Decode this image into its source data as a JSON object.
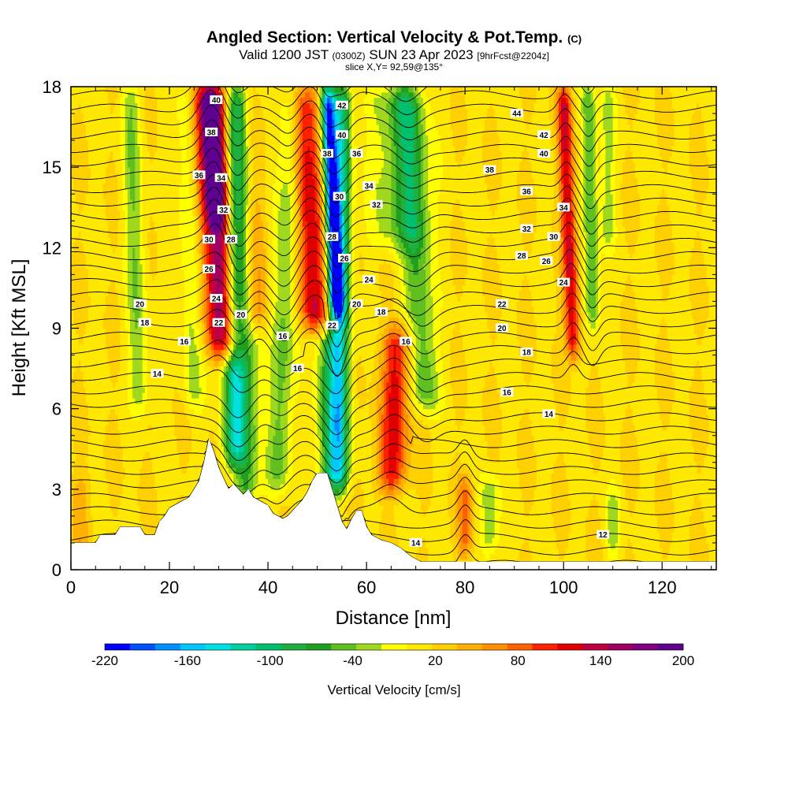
{
  "chart_data": {
    "type": "heatmap",
    "title": "Angled Section: Vertical Velocity & Pot.Temp.",
    "title_tag": "(C)",
    "subtitle_main": "Valid 1200 JST",
    "subtitle_utc": "(0300Z)",
    "subtitle_date": "SUN 23 Apr 2023",
    "subtitle_fcst": "[9hrFcst@2204z]",
    "slice_label": "slice X,Y= 92,59@135°",
    "xlabel": "Distance [nm]",
    "ylabel": "Height [Kft MSL]",
    "xlim": [
      0,
      131
    ],
    "ylim": [
      0,
      18
    ],
    "x_ticks": [
      "0",
      "20",
      "40",
      "60",
      "80",
      "100",
      "120"
    ],
    "x_tick_values": [
      0,
      20,
      40,
      60,
      80,
      100,
      120
    ],
    "y_ticks": [
      "0",
      "3",
      "6",
      "9",
      "12",
      "15",
      "18"
    ],
    "y_tick_values": [
      0,
      3,
      6,
      9,
      12,
      15,
      18
    ],
    "colorbar": {
      "label": "Vertical Velocity [cm/s]",
      "tick_labels": [
        "-220",
        "-160",
        "-100",
        "-40",
        "20",
        "80",
        "140",
        "200"
      ],
      "tick_values": [
        -220,
        -160,
        -100,
        -40,
        20,
        80,
        140,
        200
      ],
      "colors": [
        "#0000ff",
        "#0050ff",
        "#0090ff",
        "#00c8ff",
        "#00e0e0",
        "#00d0a0",
        "#00c070",
        "#20b040",
        "#20a020",
        "#60c020",
        "#a0d820",
        "#ffff00",
        "#ffe800",
        "#ffd000",
        "#ffb000",
        "#ff9000",
        "#ff6000",
        "#ff2000",
        "#e00000",
        "#c00040",
        "#a00060",
        "#800080",
        "#600090"
      ]
    },
    "vertical_velocity_features": [
      {
        "x": 31.5,
        "ybottom": 8.0,
        "ytop": 18,
        "lean": -3.5,
        "width": 3.5,
        "value": 150
      },
      {
        "x": 29.5,
        "ybottom": 13,
        "ytop": 18,
        "lean": -1.5,
        "width": 2.0,
        "value": 90
      },
      {
        "x": 33.0,
        "ybottom": 4.0,
        "ytop": 18,
        "lean": 0.5,
        "width": 2.2,
        "value": -110
      },
      {
        "x": 37.5,
        "ybottom": 9.0,
        "ytop": 18,
        "lean": -1.5,
        "width": 2.5,
        "value": 80
      },
      {
        "x": 35.5,
        "ybottom": 2.5,
        "ytop": 18,
        "lean": 0.5,
        "width": 2.5,
        "value": -80
      },
      {
        "x": 42.0,
        "ybottom": 3.0,
        "ytop": 18,
        "lean": 3.0,
        "width": 2.5,
        "value": -60
      },
      {
        "x": 49.5,
        "ybottom": 9.0,
        "ytop": 18,
        "lean": -2.5,
        "width": 3.0,
        "value": 110
      },
      {
        "x": 54.0,
        "ybottom": 9.5,
        "ytop": 18,
        "lean": -2.0,
        "width": 1.5,
        "value": -210
      },
      {
        "x": 54.5,
        "ybottom": 3.0,
        "ytop": 18,
        "lean": 0.5,
        "width": 2.0,
        "value": -120
      },
      {
        "x": 52.5,
        "ybottom": 3.0,
        "ytop": 9.0,
        "lean": 0.0,
        "width": 2.5,
        "value": -90
      },
      {
        "x": 65.0,
        "ybottom": 3.0,
        "ytop": 9.0,
        "lean": 1.5,
        "width": 3.0,
        "value": 100
      },
      {
        "x": 72.0,
        "ybottom": 6.0,
        "ytop": 18,
        "lean": -4.0,
        "width": 3.0,
        "value": -70
      },
      {
        "x": 67.0,
        "ybottom": 12.0,
        "ytop": 18,
        "lean": -1.0,
        "width": 6.0,
        "value": -50
      },
      {
        "x": 14.0,
        "ybottom": 6.0,
        "ytop": 18,
        "lean": -2.0,
        "width": 2.0,
        "value": -50
      },
      {
        "x": 25.0,
        "ybottom": 6.0,
        "ytop": 18,
        "lean": -2.0,
        "width": 2.0,
        "value": -40
      },
      {
        "x": 102.0,
        "ybottom": 8.0,
        "ytop": 18,
        "lean": -2.0,
        "width": 1.5,
        "value": 110
      },
      {
        "x": 106.0,
        "ybottom": 9.0,
        "ytop": 18,
        "lean": -1.0,
        "width": 1.5,
        "value": -70
      },
      {
        "x": 109.0,
        "ybottom": 12.0,
        "ytop": 18,
        "lean": 0.0,
        "width": 1.5,
        "value": -40
      },
      {
        "x": 85.0,
        "ybottom": 0.5,
        "ytop": 3.5,
        "lean": 0.0,
        "width": 2.0,
        "value": -50
      },
      {
        "x": 80.0,
        "ybottom": 0.5,
        "ytop": 3.5,
        "lean": 0.0,
        "width": 1.5,
        "value": 60
      },
      {
        "x": 110.0,
        "ybottom": 0.5,
        "ytop": 3.0,
        "lean": 0.0,
        "width": 1.5,
        "value": -40
      },
      {
        "x": 2.0,
        "ybottom": 0.5,
        "ytop": 3.5,
        "lean": 0.0,
        "width": 2.0,
        "value": 30
      }
    ],
    "terrain": [
      [
        0,
        1.0
      ],
      [
        5,
        1.0
      ],
      [
        6,
        1.3
      ],
      [
        9,
        1.3
      ],
      [
        10,
        1.6
      ],
      [
        14,
        1.6
      ],
      [
        15,
        1.3
      ],
      [
        17,
        1.3
      ],
      [
        18,
        1.8
      ],
      [
        19,
        2.0
      ],
      [
        20,
        2.3
      ],
      [
        22,
        2.5
      ],
      [
        24,
        2.7
      ],
      [
        25,
        3.0
      ],
      [
        26,
        3.3
      ],
      [
        27,
        4.0
      ],
      [
        28,
        4.9
      ],
      [
        29,
        4.4
      ],
      [
        30,
        3.8
      ],
      [
        31,
        3.4
      ],
      [
        32,
        3.0
      ],
      [
        33,
        3.2
      ],
      [
        34,
        3.0
      ],
      [
        35,
        2.8
      ],
      [
        36,
        3.0
      ],
      [
        37,
        2.7
      ],
      [
        38,
        2.6
      ],
      [
        39,
        2.5
      ],
      [
        40,
        2.4
      ],
      [
        41,
        2.1
      ],
      [
        42,
        2.0
      ],
      [
        43,
        1.9
      ],
      [
        44,
        2.0
      ],
      [
        45,
        2.2
      ],
      [
        46,
        2.4
      ],
      [
        47,
        2.6
      ],
      [
        48,
        2.9
      ],
      [
        49,
        3.3
      ],
      [
        50,
        3.6
      ],
      [
        52,
        3.6
      ],
      [
        53,
        3.0
      ],
      [
        54,
        2.4
      ],
      [
        55,
        1.8
      ],
      [
        56,
        1.5
      ],
      [
        57,
        1.9
      ],
      [
        58,
        2.2
      ],
      [
        59,
        2.2
      ],
      [
        60,
        1.6
      ],
      [
        61,
        1.3
      ],
      [
        63,
        1.1
      ],
      [
        65,
        1.0
      ],
      [
        67,
        0.8
      ],
      [
        69,
        0.5
      ],
      [
        71,
        0.3
      ],
      [
        131,
        0.3
      ]
    ],
    "theta_contour_levels": [
      12,
      13,
      14,
      15,
      16,
      17,
      18,
      19,
      20,
      21,
      22,
      23,
      24,
      25,
      26,
      27,
      28,
      29,
      30,
      31,
      32,
      33,
      34,
      35,
      36,
      37,
      38,
      39,
      40,
      41,
      42,
      43,
      44,
      45,
      46,
      47,
      48
    ],
    "contour_labels": [
      {
        "text": "40",
        "x": 29.5,
        "y": 17.5
      },
      {
        "text": "38",
        "x": 28.5,
        "y": 16.3
      },
      {
        "text": "36",
        "x": 26.0,
        "y": 14.7
      },
      {
        "text": "34",
        "x": 30.5,
        "y": 14.6
      },
      {
        "text": "32",
        "x": 31.0,
        "y": 13.4
      },
      {
        "text": "30",
        "x": 28.0,
        "y": 12.3
      },
      {
        "text": "28",
        "x": 32.5,
        "y": 12.3
      },
      {
        "text": "26",
        "x": 28.0,
        "y": 11.2
      },
      {
        "text": "24",
        "x": 29.5,
        "y": 10.1
      },
      {
        "text": "22",
        "x": 30.0,
        "y": 9.2
      },
      {
        "text": "20",
        "x": 34.5,
        "y": 9.5
      },
      {
        "text": "20",
        "x": 14.0,
        "y": 9.9
      },
      {
        "text": "18",
        "x": 15.0,
        "y": 9.2
      },
      {
        "text": "16",
        "x": 23.0,
        "y": 8.5
      },
      {
        "text": "14",
        "x": 17.5,
        "y": 7.3
      },
      {
        "text": "16",
        "x": 43.0,
        "y": 8.7
      },
      {
        "text": "16",
        "x": 46.0,
        "y": 7.5
      },
      {
        "text": "42",
        "x": 55.0,
        "y": 17.3
      },
      {
        "text": "40",
        "x": 55.0,
        "y": 16.2
      },
      {
        "text": "38",
        "x": 52.0,
        "y": 15.5
      },
      {
        "text": "36",
        "x": 58.0,
        "y": 15.5
      },
      {
        "text": "34",
        "x": 60.5,
        "y": 14.3
      },
      {
        "text": "32",
        "x": 62.0,
        "y": 13.6
      },
      {
        "text": "30",
        "x": 54.5,
        "y": 13.9
      },
      {
        "text": "28",
        "x": 53.0,
        "y": 12.4
      },
      {
        "text": "26",
        "x": 55.5,
        "y": 11.6
      },
      {
        "text": "24",
        "x": 60.5,
        "y": 10.8
      },
      {
        "text": "22",
        "x": 53.0,
        "y": 9.1
      },
      {
        "text": "20",
        "x": 58.0,
        "y": 9.9
      },
      {
        "text": "18",
        "x": 63.0,
        "y": 9.6
      },
      {
        "text": "16",
        "x": 68.0,
        "y": 8.5
      },
      {
        "text": "44",
        "x": 90.5,
        "y": 17.0
      },
      {
        "text": "42",
        "x": 96.0,
        "y": 16.2
      },
      {
        "text": "40",
        "x": 96.0,
        "y": 15.5
      },
      {
        "text": "38",
        "x": 85.0,
        "y": 14.9
      },
      {
        "text": "36",
        "x": 92.5,
        "y": 14.1
      },
      {
        "text": "34",
        "x": 100.0,
        "y": 13.5
      },
      {
        "text": "32",
        "x": 92.5,
        "y": 12.7
      },
      {
        "text": "30",
        "x": 98.0,
        "y": 12.4
      },
      {
        "text": "28",
        "x": 91.5,
        "y": 11.7
      },
      {
        "text": "26",
        "x": 96.5,
        "y": 11.5
      },
      {
        "text": "24",
        "x": 100.0,
        "y": 10.7
      },
      {
        "text": "22",
        "x": 87.5,
        "y": 9.9
      },
      {
        "text": "20",
        "x": 87.5,
        "y": 9.0
      },
      {
        "text": "18",
        "x": 92.5,
        "y": 8.1
      },
      {
        "text": "16",
        "x": 88.5,
        "y": 6.6
      },
      {
        "text": "14",
        "x": 97.0,
        "y": 5.8
      },
      {
        "text": "14",
        "x": 70.0,
        "y": 1.0
      },
      {
        "text": "12",
        "x": 108.0,
        "y": 1.3
      }
    ],
    "grid": false,
    "legend": "colorbar-bottom"
  }
}
